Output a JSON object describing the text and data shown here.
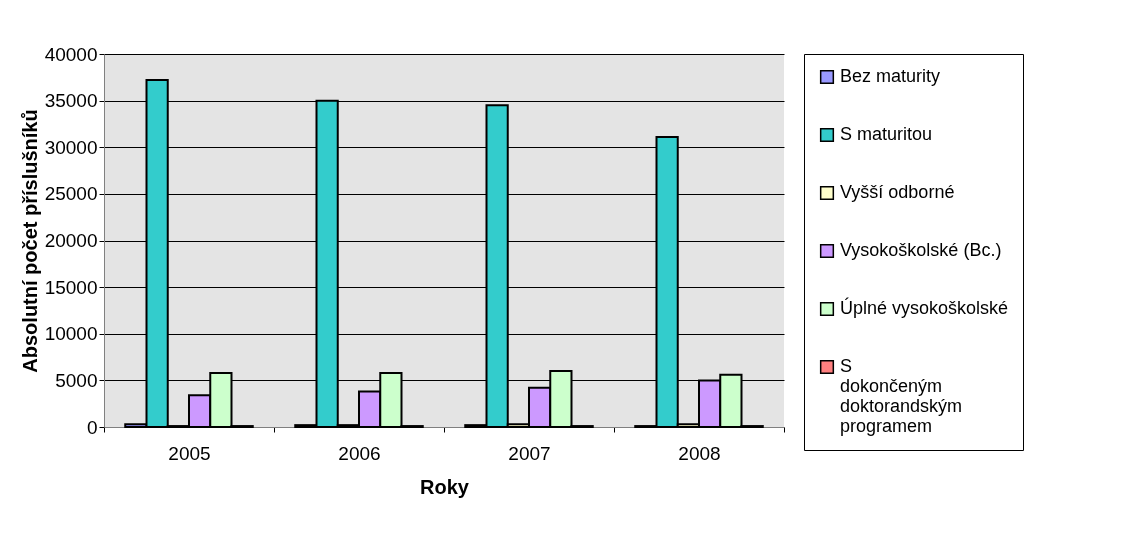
{
  "chart_data": {
    "type": "bar",
    "xlabel": "Roky",
    "ylabel": "Absolutní počet příslušníků",
    "categories": [
      "2005",
      "2006",
      "2007",
      "2008"
    ],
    "series": [
      {
        "name": "Bez maturity",
        "color": "#9999ff",
        "values": [
          300,
          200,
          200,
          100
        ]
      },
      {
        "name": "S maturitou",
        "color": "#33cccc",
        "values": [
          37200,
          35000,
          34500,
          31100
        ]
      },
      {
        "name": "Vyšší odborné",
        "color": "#ffffcc",
        "values": [
          100,
          200,
          300,
          300
        ]
      },
      {
        "name": "Vysokoškolské (Bc.)",
        "color": "#cc99ff",
        "values": [
          3400,
          3800,
          4200,
          5000
        ]
      },
      {
        "name": "Úplné vysokoškolské",
        "color": "#ccffcc",
        "values": [
          5800,
          5800,
          6000,
          5600
        ]
      },
      {
        "name": "S dokončeným doktorandským programem",
        "color": "#ff8080",
        "values": [
          100,
          100,
          100,
          100
        ]
      }
    ],
    "ylim": [
      0,
      40000
    ],
    "yticks": [
      0,
      5000,
      10000,
      15000,
      20000,
      25000,
      30000,
      35000,
      40000
    ],
    "grid": "y",
    "legend": "right"
  }
}
